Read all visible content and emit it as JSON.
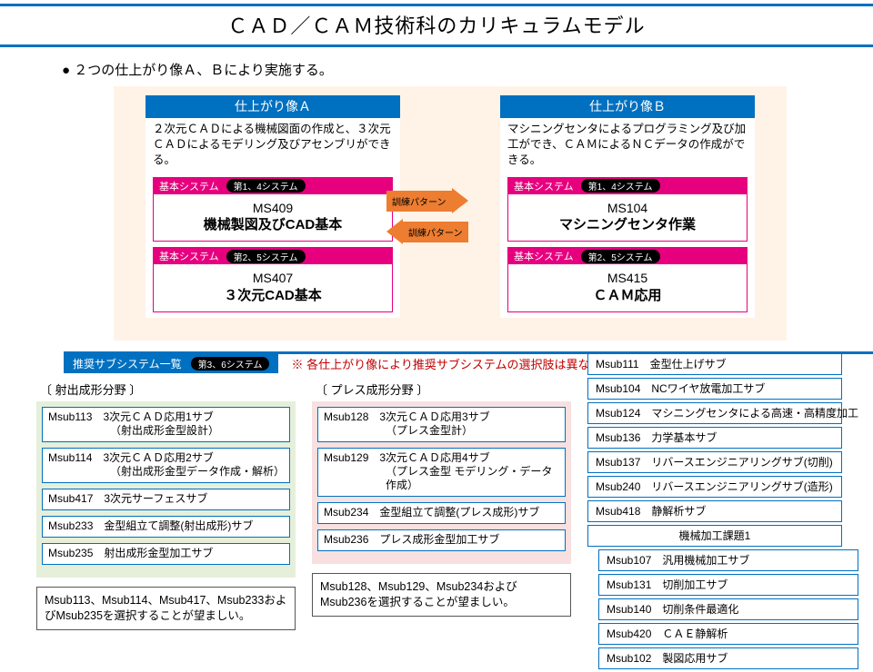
{
  "title": "ＣＡＤ／ＣＡＭ技術科のカリキュラムモデル",
  "intro": "２つの仕上がり像Ａ、Ｂにより実施する。",
  "colors": {
    "accent_blue": "#0070c0",
    "magenta": "#e6007e",
    "orange": "#ed7d31",
    "note_red": "#c00000",
    "top_bg": "#fff3e8",
    "col_green_bg": "#e5efda",
    "col_pink_bg": "#f8e0e0"
  },
  "arrows": {
    "right_label": "訓練パターン",
    "left_label": "訓練パターン"
  },
  "profileA": {
    "head": "仕上がり像Ａ",
    "desc": "２次元ＣＡＤによる機械図面の作成と、３次元ＣＡＤによるモデリング及びアセンブリができる。",
    "sys1": {
      "label": "基本システム",
      "tag": "第1、4システム",
      "code": "MS409",
      "name": "機械製図及びCAD基本"
    },
    "sys2": {
      "label": "基本システム",
      "tag": "第2、5システム",
      "code": "MS407",
      "name": "３次元CAD基本"
    }
  },
  "profileB": {
    "head": "仕上がり像Ｂ",
    "desc": "マシニングセンタによるプログラミング及び加工ができ、ＣＡＭによるＮＣデータの作成ができる。",
    "sys1": {
      "label": "基本システム",
      "tag": "第1、4システム",
      "code": "MS104",
      "name": "マシニングセンタ作業"
    },
    "sys2": {
      "label": "基本システム",
      "tag": "第2、5システム",
      "code": "MS415",
      "name": "ＣＡＭ応用"
    }
  },
  "rec": {
    "label": "推奨サブシステム一覧",
    "tag": "第3、6システム",
    "note": "※ 各仕上がり像により推奨サブシステムの選択肢は異なります。"
  },
  "col1": {
    "title": "〔 射出成形分野 〕",
    "items": [
      {
        "l1": "Msub113　3次元ＣＡＤ応用1サブ",
        "l2": "（射出成形金型設計）"
      },
      {
        "l1": "Msub114　3次元ＣＡＤ応用2サブ",
        "l2": "（射出成形金型データ作成・解析）"
      },
      {
        "l1": "Msub417　3次元サーフェスサブ",
        "l2": ""
      },
      {
        "l1": "Msub233　金型組立て調整(射出成形)サブ",
        "l2": ""
      },
      {
        "l1": "Msub235　射出成形金型加工サブ",
        "l2": ""
      }
    ],
    "note": "Msub113、Msub114、Msub417、Msub233およびMsub235を選択することが望ましい。"
  },
  "col2": {
    "title": "〔 プレス成形分野 〕",
    "items": [
      {
        "l1": "Msub128　3次元ＣＡＤ応用3サブ",
        "l2": "（プレス金型計）"
      },
      {
        "l1": "Msub129　3次元ＣＡＤ応用4サブ",
        "l2": "（プレス金型 モデリング・データ作成）"
      },
      {
        "l1": "Msub234　金型組立て調整(プレス成形)サブ",
        "l2": ""
      },
      {
        "l1": "Msub236　プレス成形金型加工サブ",
        "l2": ""
      }
    ],
    "note": "Msub128、Msub129、Msub234およびMsub236を選択することが望ましい。"
  },
  "rightList": {
    "items_top": [
      "Msub111　金型仕上げサブ",
      "Msub104　NCワイヤ放電加工サブ",
      "Msub124　マシニングセンタによる高速・高精度加工",
      "Msub136　力学基本サブ",
      "Msub137　リバースエンジニアリングサブ(切削)",
      "Msub240　リバースエンジニアリングサブ(造形)",
      "Msub418　静解析サブ"
    ],
    "header2": "機械加工課題1",
    "items_bot": [
      "Msub107　汎用機械加工サブ",
      "Msub131　切削加工サブ",
      "Msub140　切削条件最適化",
      "Msub420　ＣＡＥ静解析",
      "Msub102　製図応用サブ"
    ]
  }
}
